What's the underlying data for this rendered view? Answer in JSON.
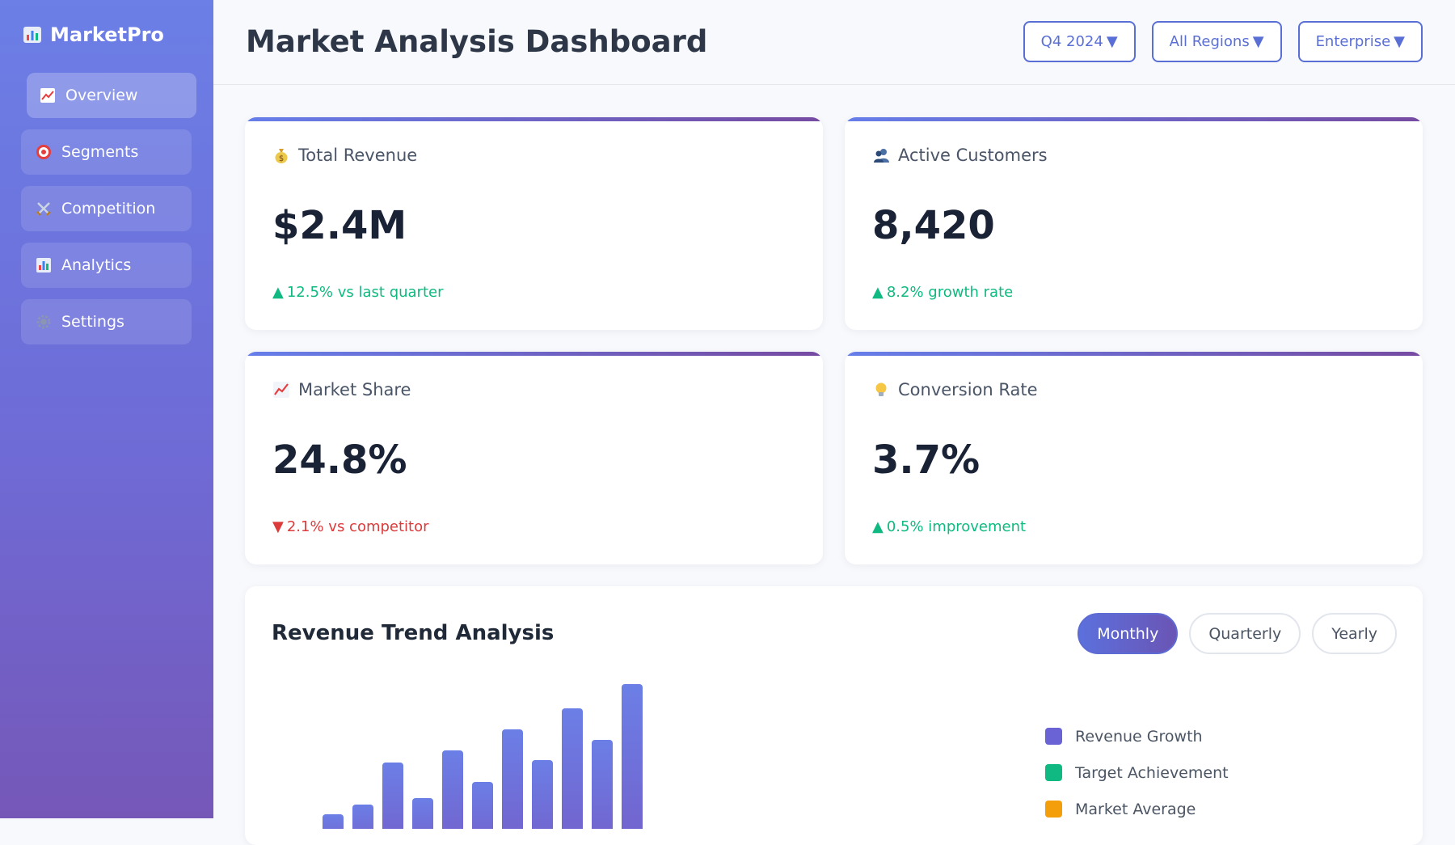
{
  "app": {
    "brand": "MarketPro"
  },
  "sidebar": {
    "items": [
      {
        "label": "Overview",
        "icon": "trend-up-icon",
        "active": true
      },
      {
        "label": "Segments",
        "icon": "target-icon",
        "active": false
      },
      {
        "label": "Competition",
        "icon": "crossed-swords-icon",
        "active": false
      },
      {
        "label": "Analytics",
        "icon": "bar-chart-icon",
        "active": false
      },
      {
        "label": "Settings",
        "icon": "gear-icon",
        "active": false
      }
    ]
  },
  "header": {
    "title": "Market Analysis Dashboard",
    "filters": [
      "Q4 2024",
      "All Regions",
      "Enterprise"
    ]
  },
  "kpis": [
    {
      "title": "Total Revenue",
      "icon": "money-bag-icon",
      "value": "$2.4M",
      "change_arrow": "▲",
      "change": "12.5% vs last quarter",
      "direction": "up"
    },
    {
      "title": "Active Customers",
      "icon": "users-icon",
      "value": "8,420",
      "change_arrow": "▲",
      "change": "8.2% growth rate",
      "direction": "up"
    },
    {
      "title": "Market Share",
      "icon": "trend-up-icon",
      "value": "24.8%",
      "change_arrow": "▼",
      "change": "2.1% vs competitor",
      "direction": "down"
    },
    {
      "title": "Conversion Rate",
      "icon": "lightbulb-icon",
      "value": "3.7%",
      "change_arrow": "▲",
      "change": "0.5% improvement",
      "direction": "up"
    }
  ],
  "chart": {
    "title": "Revenue Trend Analysis",
    "toggles": [
      "Monthly",
      "Quarterly",
      "Yearly"
    ],
    "active_toggle": "Monthly",
    "legend": [
      {
        "label": "Revenue Growth",
        "color": "#6a63d6"
      },
      {
        "label": "Target Achievement",
        "color": "#10b981"
      },
      {
        "label": "Market Average",
        "color": "#f59e0b"
      }
    ]
  },
  "chart_data": {
    "type": "bar",
    "title": "Revenue Trend Analysis",
    "values": [
      18,
      30,
      82,
      38,
      97,
      58,
      123,
      85,
      149,
      110,
      179
    ],
    "legend": [
      "Revenue Growth",
      "Target Achievement",
      "Market Average"
    ]
  },
  "colors": {
    "accent": "#5a6fd6",
    "positive": "#10b981",
    "negative": "#dc3b3b"
  }
}
